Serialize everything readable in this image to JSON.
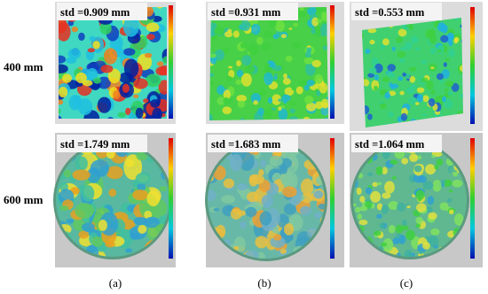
{
  "rows": [
    {
      "label": "400 mm",
      "panels": [
        "std =0.909 mm",
        "std =0.931 mm",
        "std =0.553 mm"
      ]
    },
    {
      "label": "600 mm",
      "panels": [
        "std =1.749 mm",
        "std =1.683 mm",
        "std =1.064 mm"
      ]
    }
  ],
  "columns": [
    "(a)",
    "(b)",
    "(c)"
  ]
}
